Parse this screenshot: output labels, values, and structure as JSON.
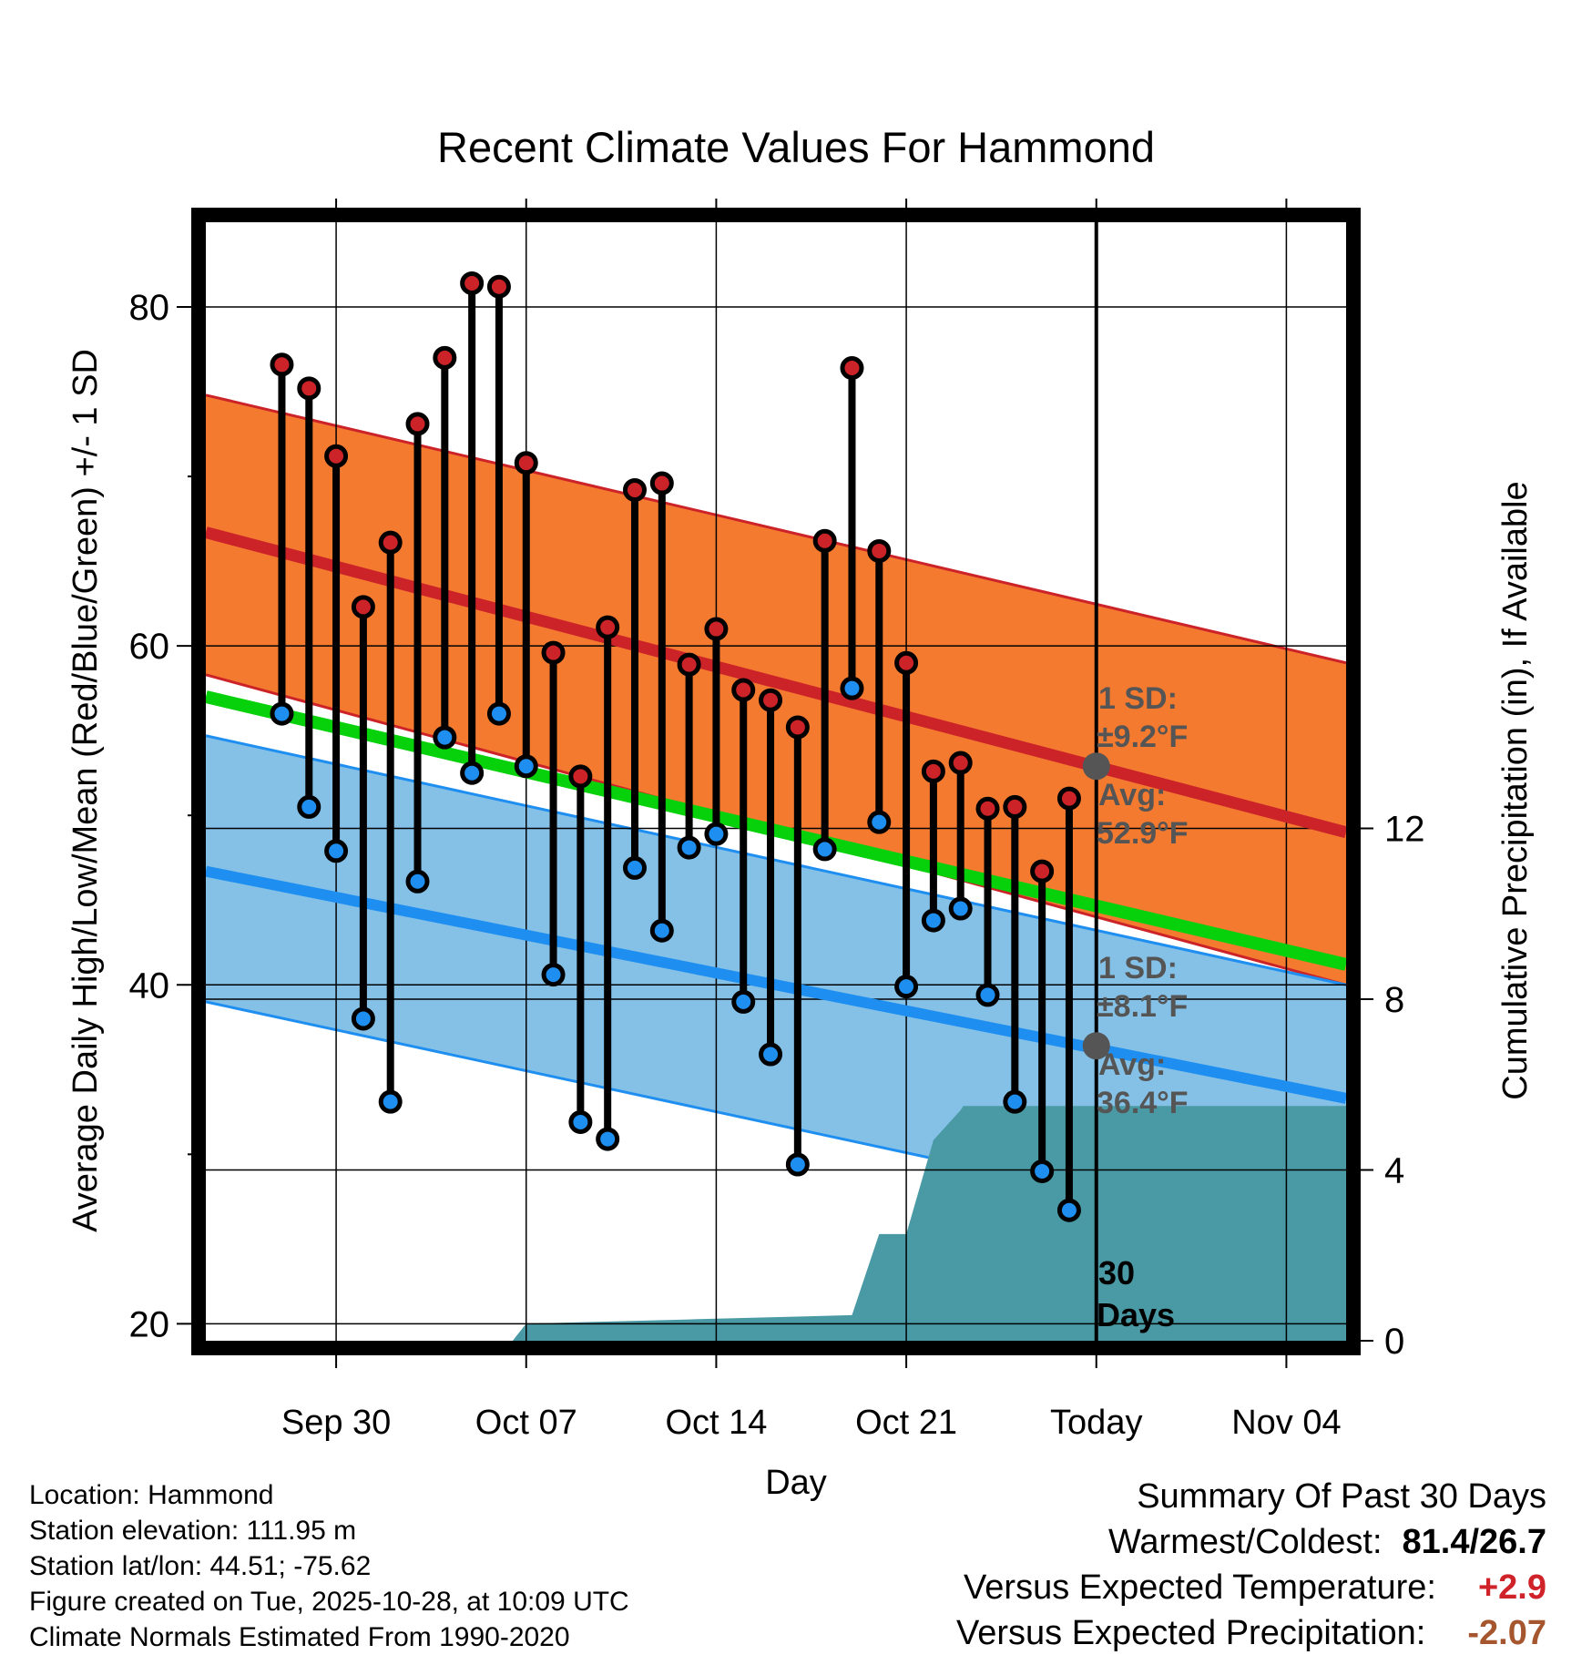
{
  "chart_data": {
    "type": "scatter",
    "title": "Recent Climate Values For Hammond",
    "xlabel": "Day",
    "ylabel_left": "Average Daily High/Low/Mean (Red/Blue/Green) +/- 1 SD",
    "ylabel_right": "Cumulative Precipitation (in), If Available",
    "ylim_left": [
      19,
      85
    ],
    "ylim_right": [
      0,
      26.2
    ],
    "xlim_days": [
      -32.8,
      9.2
    ],
    "x_ticks": [
      {
        "day": -28,
        "label": "Sep 30"
      },
      {
        "day": -21,
        "label": "Oct 07"
      },
      {
        "day": -14,
        "label": "Oct 14"
      },
      {
        "day": -7,
        "label": "Oct 21"
      },
      {
        "day": 0,
        "label": "Today"
      },
      {
        "day": 7,
        "label": "Nov 04"
      }
    ],
    "y_ticks_left": [
      20,
      40,
      60,
      80
    ],
    "y_minor_left": [
      30,
      50,
      70
    ],
    "y_ticks_right": [
      0,
      4,
      8,
      12
    ],
    "normals": {
      "high_avg": {
        "start": 66.7,
        "end": 49.0
      },
      "high_sd_upper": {
        "start": 74.8,
        "end": 59.0
      },
      "high_sd_lower": {
        "start": 58.3,
        "end": 40.0
      },
      "low_avg": {
        "start": 46.7,
        "end": 33.3
      },
      "low_sd_upper": {
        "start": 54.7,
        "end": 40.0
      },
      "low_sd_lower": {
        "start": 39.0,
        "end": 24.5
      },
      "mean": {
        "start": 57.0,
        "end": 41.2
      }
    },
    "daily": {
      "days": [
        -30,
        -29,
        -28,
        -27,
        -26,
        -25,
        -24,
        -23,
        -22,
        -21,
        -20,
        -19,
        -18,
        -17,
        -16,
        -15,
        -14,
        -13,
        -12,
        -11,
        -10,
        -9,
        -8,
        -7,
        -6,
        -5,
        -4,
        -3,
        -2,
        -1
      ],
      "highs": [
        76.6,
        75.2,
        71.2,
        62.3,
        66.1,
        73.1,
        77.0,
        81.4,
        81.2,
        70.8,
        59.6,
        52.3,
        61.1,
        69.2,
        69.6,
        58.9,
        61.0,
        57.4,
        56.8,
        55.2,
        66.2,
        76.4,
        65.6,
        59.0,
        52.6,
        53.1,
        50.4,
        50.5,
        46.7,
        51.0
      ],
      "lows": [
        56.0,
        50.5,
        47.9,
        38.0,
        33.1,
        46.1,
        54.6,
        52.5,
        56.0,
        52.9,
        40.6,
        31.9,
        30.9,
        46.9,
        43.2,
        48.1,
        48.9,
        39.0,
        35.9,
        29.4,
        48.0,
        57.5,
        49.6,
        39.9,
        43.8,
        44.5,
        39.4,
        33.1,
        29.0,
        26.7
      ]
    },
    "precip_cumulative": {
      "days": [
        -31,
        -21.5,
        -21,
        -15,
        -9,
        -8,
        -7,
        -6,
        -5,
        -4.9,
        -1,
        9.2
      ],
      "values": [
        0,
        0,
        0.4,
        0.5,
        0.6,
        2.5,
        2.5,
        4.7,
        5.4,
        5.5,
        5.5,
        5.5
      ]
    },
    "annotations": {
      "high_sd": "1 SD:",
      "high_sd_value": "±9.2°F",
      "high_avg": "Avg:",
      "high_avg_value": "52.9°F",
      "high_avg_today": 52.9,
      "low_sd": "1 SD:",
      "low_sd_value": "±8.1°F",
      "low_avg": "Avg:",
      "low_avg_value": "36.4°F",
      "low_avg_today": 36.4,
      "days_label_1": "30",
      "days_label_2": "Days"
    }
  },
  "colors": {
    "high_band": "#f47a30",
    "low_band": "#85c1e7",
    "high_line": "#cc2329",
    "low_line": "#1e8ff0",
    "mean_line": "#07d10b",
    "precip": "#4a9aa5",
    "high_marker": "#cc2329",
    "low_marker": "#1e8ff0",
    "annotation": "#555555",
    "warm": "#d02229",
    "dry": "#a5562e"
  },
  "info": {
    "location": "Location: Hammond",
    "elevation": "Station elevation: 111.95 m",
    "latlon": "Station lat/lon: 44.51; -75.62",
    "created": "Figure created on Tue, 2025-10-28, at 10:09 UTC",
    "normals": "Climate Normals Estimated From 1990-2020"
  },
  "summary": {
    "title": "Summary Of Past 30 Days",
    "warm_cold_label": "Warmest/Coldest:",
    "warm_cold_value": "81.4/26.7",
    "temp_label": "Versus Expected Temperature:",
    "temp_value": "+2.9",
    "precip_label": "Versus Expected Precipitation:",
    "precip_value": "-2.07"
  }
}
